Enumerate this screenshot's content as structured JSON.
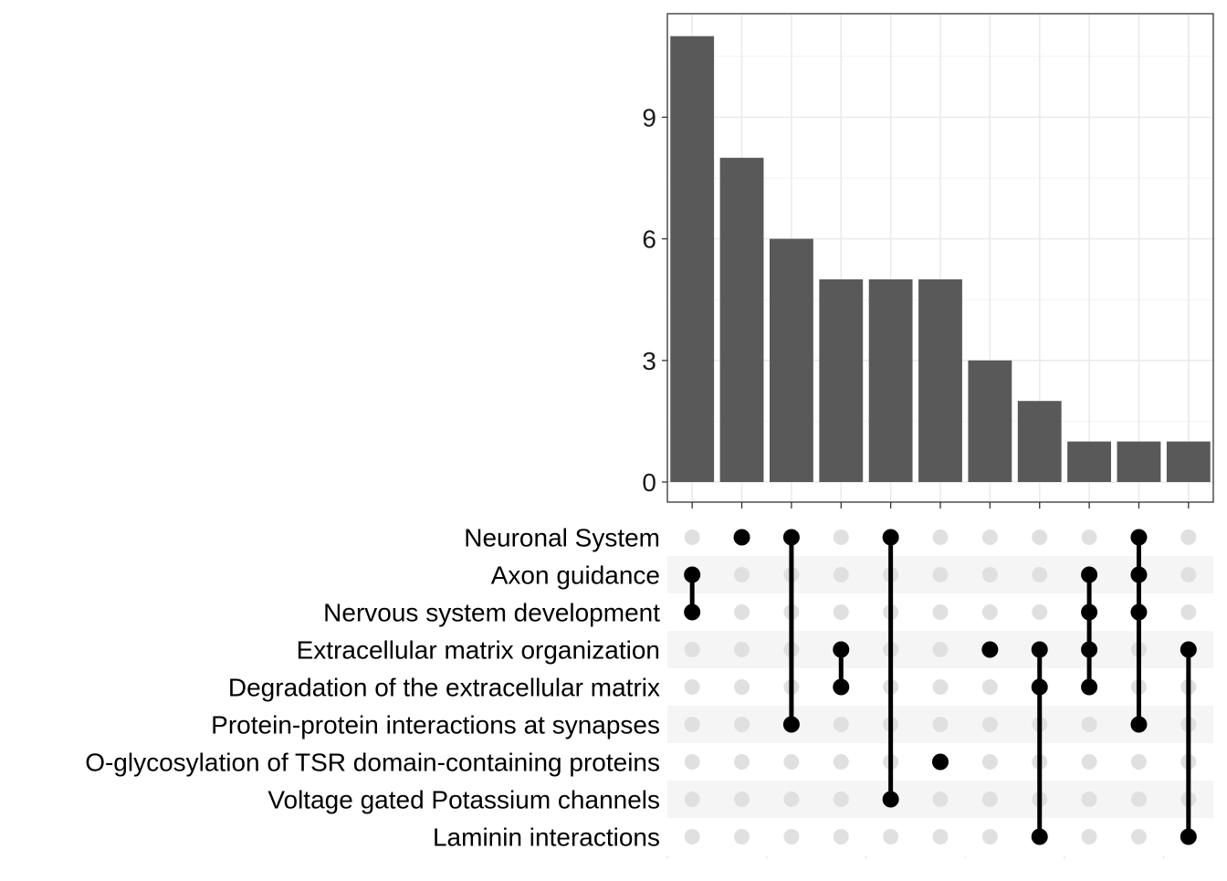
{
  "chart_data": {
    "type": "upset",
    "title": "",
    "xlabel": "",
    "ylabel": "",
    "ylim": [
      0,
      11.5
    ],
    "yticks": [
      0,
      3,
      6,
      9
    ],
    "grid": true,
    "legend": "none",
    "bar_color": "#595959",
    "point_color": "#000000",
    "empty_point_color": "#e0e0e0",
    "sets": [
      "Neuronal System",
      "Axon guidance",
      "Nervous system development",
      "Extracellular matrix organization",
      "Degradation of the extracellular matrix",
      "Protein-protein interactions at synapses",
      "O-glycosylation of TSR domain-containing proteins",
      "Voltage gated Potassium channels",
      "Laminin interactions"
    ],
    "intersections": [
      {
        "value": 11,
        "sets": [
          "Axon guidance",
          "Nervous system development"
        ]
      },
      {
        "value": 8,
        "sets": [
          "Neuronal System"
        ]
      },
      {
        "value": 6,
        "sets": [
          "Neuronal System",
          "Protein-protein interactions at synapses"
        ]
      },
      {
        "value": 5,
        "sets": [
          "Extracellular matrix organization",
          "Degradation of the extracellular matrix"
        ]
      },
      {
        "value": 5,
        "sets": [
          "Neuronal System",
          "Voltage gated Potassium channels"
        ]
      },
      {
        "value": 5,
        "sets": [
          "O-glycosylation of TSR domain-containing proteins"
        ]
      },
      {
        "value": 3,
        "sets": [
          "Extracellular matrix organization"
        ]
      },
      {
        "value": 2,
        "sets": [
          "Extracellular matrix organization",
          "Degradation of the extracellular matrix",
          "Laminin interactions"
        ]
      },
      {
        "value": 1,
        "sets": [
          "Axon guidance",
          "Nervous system development",
          "Extracellular matrix organization",
          "Degradation of the extracellular matrix"
        ]
      },
      {
        "value": 1,
        "sets": [
          "Neuronal System",
          "Axon guidance",
          "Nervous system development",
          "Protein-protein interactions at synapses"
        ]
      },
      {
        "value": 1,
        "sets": [
          "Extracellular matrix organization",
          "Laminin interactions"
        ]
      }
    ]
  }
}
